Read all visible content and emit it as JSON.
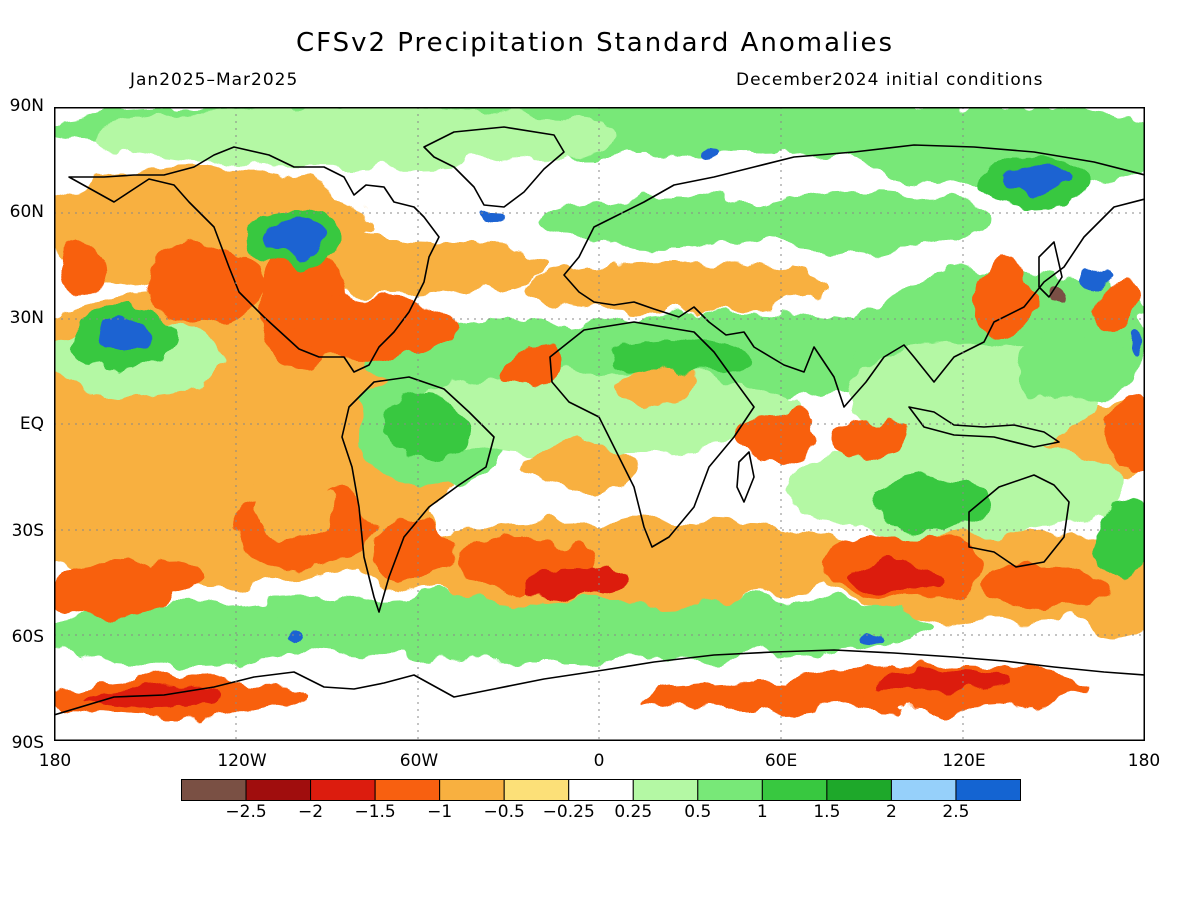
{
  "title": "CFSv2 Precipitation Standard Anomalies",
  "period": "Jan2025–Mar2025",
  "init": "December2024 initial conditions",
  "lat_labels": [
    "90N",
    "60N",
    "30N",
    "EQ",
    "30S",
    "60S",
    "90S"
  ],
  "lon_labels": [
    "180",
    "120W",
    "60W",
    "0",
    "60E",
    "120E",
    "180"
  ],
  "colorbar": {
    "colors": [
      "#7a5044",
      "#a00d0d",
      "#dc1c0e",
      "#f86010",
      "#f8b040",
      "#fce078",
      "#ffffff",
      "#b4f8a4",
      "#78e878",
      "#38c840",
      "#1ea82a",
      "#96d0fa",
      "#1464d2"
    ],
    "labels": [
      "−2.5",
      "−2",
      "−1.5",
      "−1",
      "−0.5",
      "−0.25",
      "0.25",
      "0.5",
      "1",
      "1.5",
      "2",
      "2.5"
    ]
  },
  "colors": {
    "neg_strong": "#dc1c0e",
    "neg": "#f86010",
    "neg_weak": "#f8b040",
    "pos_weak": "#b4f8a4",
    "pos": "#78e878",
    "pos_strong": "#38c840",
    "wet": "#1e64d2"
  }
}
